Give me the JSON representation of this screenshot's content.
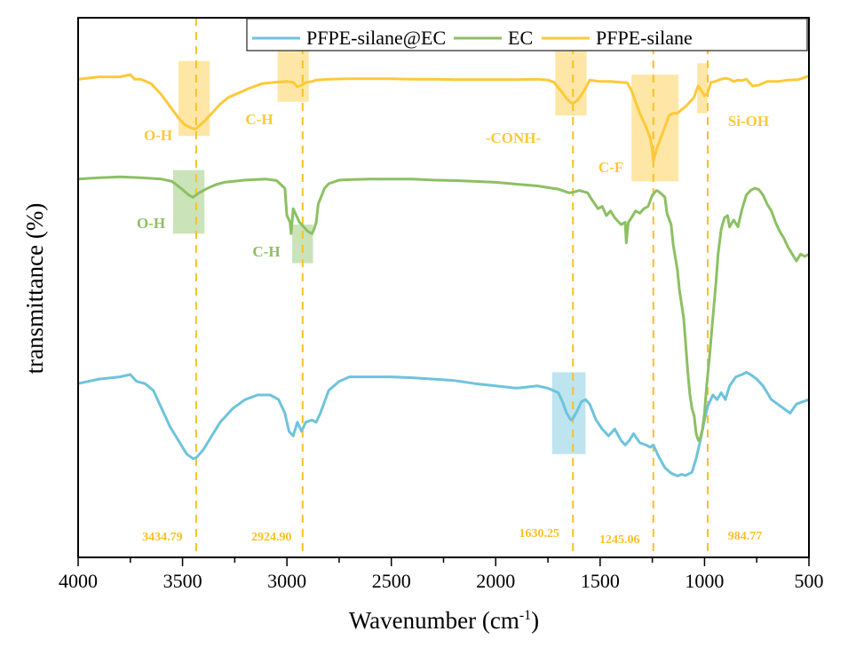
{
  "chart_data": {
    "type": "line",
    "title": "",
    "xlabel": "Wavenumber (cm",
    "xlabel_sup": "-1",
    "xlabel_close": ")",
    "ylabel": "transmittance (%)",
    "xlim": [
      4000,
      500
    ],
    "ylim": [
      0,
      100
    ],
    "x_ticks": [
      4000,
      3500,
      3000,
      2500,
      2000,
      1500,
      1000,
      500
    ],
    "x_tick_labels": [
      "4000",
      "3500",
      "3000",
      "2500",
      "2000",
      "1500",
      "1000",
      "500"
    ],
    "x_minor_ticks": [
      3750,
      3250,
      2750,
      2250,
      1750,
      1250,
      750
    ],
    "grid": false,
    "legend_position": "top-right",
    "series": [
      {
        "name": "PFPE-silane@EC",
        "color": "#6ec3dc",
        "x": [
          4000,
          3900,
          3800,
          3750,
          3720,
          3680,
          3640,
          3600,
          3560,
          3520,
          3480,
          3450,
          3434,
          3400,
          3360,
          3320,
          3260,
          3200,
          3140,
          3080,
          3040,
          3010,
          2990,
          2970,
          2950,
          2930,
          2910,
          2880,
          2860,
          2840,
          2800,
          2750,
          2700,
          2600,
          2500,
          2400,
          2300,
          2200,
          2100,
          2000,
          1900,
          1800,
          1750,
          1700,
          1680,
          1660,
          1640,
          1630,
          1610,
          1590,
          1570,
          1550,
          1520,
          1490,
          1460,
          1430,
          1400,
          1380,
          1360,
          1340,
          1310,
          1280,
          1260,
          1245,
          1220,
          1190,
          1160,
          1130,
          1110,
          1090,
          1060,
          1040,
          1020,
          1000,
          985,
          960,
          940,
          920,
          900,
          880,
          850,
          820,
          800,
          780,
          750,
          720,
          700,
          680,
          650,
          620,
          590,
          560,
          530,
          500
        ],
        "y": [
          35.5,
          36.5,
          37,
          37.5,
          36,
          35.5,
          34,
          30,
          26,
          23,
          20,
          19,
          19.2,
          21,
          24,
          27,
          30,
          32,
          33,
          33,
          32,
          29,
          25,
          24,
          27,
          25,
          27,
          27.5,
          27,
          29,
          34,
          36,
          37,
          37,
          37,
          36.8,
          36.5,
          36.2,
          35.5,
          35,
          34.5,
          35,
          34.5,
          33.5,
          31.5,
          29,
          27.5,
          27.8,
          29.5,
          31.5,
          32,
          31,
          27.5,
          25.5,
          24,
          25.5,
          23,
          22,
          23,
          24.5,
          22.5,
          22,
          21.5,
          22,
          19.5,
          17,
          15.8,
          15.2,
          15.5,
          15.3,
          16,
          19,
          23,
          27.5,
          30.5,
          33,
          32,
          33.5,
          32,
          35,
          37,
          37.5,
          38,
          37.5,
          36.5,
          35,
          33.5,
          32,
          31,
          30,
          29,
          31,
          31.5,
          32
        ]
      },
      {
        "name": "EC",
        "color": "#8cc063",
        "x": [
          4000,
          3900,
          3800,
          3700,
          3600,
          3550,
          3500,
          3470,
          3450,
          3420,
          3380,
          3340,
          3300,
          3200,
          3100,
          3050,
          3010,
          3000,
          2985,
          2980,
          2970,
          2960,
          2950,
          2940,
          2920,
          2900,
          2880,
          2870,
          2860,
          2850,
          2820,
          2800,
          2750,
          2700,
          2600,
          2500,
          2400,
          2300,
          2200,
          2100,
          2000,
          1900,
          1800,
          1700,
          1650,
          1630,
          1600,
          1560,
          1540,
          1510,
          1490,
          1470,
          1450,
          1430,
          1400,
          1380,
          1375,
          1365,
          1350,
          1330,
          1310,
          1290,
          1270,
          1250,
          1230,
          1220,
          1200,
          1190,
          1180,
          1160,
          1150,
          1130,
          1120,
          1100,
          1090,
          1080,
          1070,
          1060,
          1050,
          1040,
          1030,
          1020,
          1010,
          1000,
          990,
          975,
          960,
          945,
          935,
          920,
          905,
          890,
          880,
          860,
          840,
          820,
          800,
          780,
          760,
          740,
          720,
          700,
          680,
          660,
          640,
          620,
          600,
          580,
          560,
          540,
          520,
          500
        ],
        "y": [
          80.5,
          80.8,
          81,
          80.8,
          80.5,
          80,
          78.2,
          77,
          76.5,
          77.5,
          78.5,
          79.3,
          79.8,
          80.3,
          80.5,
          80.2,
          78.5,
          72.5,
          71,
          68.5,
          74,
          73,
          72,
          71,
          70,
          69,
          68.5,
          69.5,
          71,
          75,
          78.5,
          79.5,
          80.3,
          80.4,
          80.5,
          80.5,
          80.5,
          80.3,
          80.2,
          80,
          79.8,
          79.4,
          79,
          78.3,
          77.5,
          77.6,
          78,
          77.5,
          76,
          74,
          74.5,
          72.5,
          73.5,
          72,
          70.5,
          71,
          66.5,
          71,
          72,
          73.5,
          73,
          74,
          74.5,
          77,
          78,
          77.8,
          77,
          76.5,
          73,
          70.5,
          66,
          60.5,
          56,
          50,
          44,
          38,
          33,
          30,
          28.5,
          24.5,
          23,
          23.5,
          25.5,
          29,
          35,
          42,
          50,
          58,
          64,
          69.5,
          72,
          72.5,
          70,
          71.5,
          70,
          74,
          77,
          78,
          78.5,
          78.2,
          77,
          75,
          73.5,
          71,
          69,
          67.5,
          65.5,
          64,
          62.5,
          64,
          63.5,
          64
        ]
      },
      {
        "name": "PFPE-silane",
        "color": "#fcc93a",
        "x": [
          4000,
          3900,
          3800,
          3750,
          3730,
          3700,
          3650,
          3600,
          3560,
          3520,
          3490,
          3460,
          3440,
          3420,
          3390,
          3360,
          3320,
          3280,
          3230,
          3180,
          3120,
          3060,
          3000,
          2970,
          2950,
          2930,
          2910,
          2880,
          2860,
          2800,
          2700,
          2600,
          2500,
          2400,
          2300,
          2200,
          2100,
          2000,
          1900,
          1800,
          1750,
          1720,
          1700,
          1680,
          1660,
          1640,
          1630,
          1610,
          1590,
          1570,
          1550,
          1500,
          1450,
          1400,
          1370,
          1350,
          1330,
          1310,
          1290,
          1280,
          1260,
          1250,
          1245,
          1230,
          1210,
          1190,
          1170,
          1150,
          1130,
          1110,
          1090,
          1070,
          1050,
          1040,
          1030,
          1015,
          1000,
          985,
          970,
          950,
          920,
          900,
          880,
          860,
          840,
          820,
          800,
          770,
          740,
          700,
          650,
          600,
          550,
          500
        ],
        "y": [
          102.5,
          103,
          103,
          103.5,
          102.5,
          102.5,
          101.5,
          99,
          96.5,
          94,
          92.5,
          91.8,
          91.5,
          92.2,
          93.5,
          95,
          97,
          98.5,
          99.5,
          100.5,
          101.5,
          101.8,
          102,
          101.8,
          100.8,
          101.2,
          101.8,
          102,
          102.3,
          102.5,
          102.6,
          102.6,
          102.6,
          102.5,
          102.5,
          102.4,
          102.4,
          102.4,
          102.4,
          102.5,
          102.3,
          101.8,
          100.6,
          99.5,
          98.2,
          97.3,
          97.2,
          97.8,
          99,
          100.5,
          102.3,
          102,
          102,
          101.8,
          101.7,
          100,
          97.5,
          95,
          93,
          92,
          89.5,
          87,
          84.5,
          87,
          89.5,
          92,
          94.5,
          95,
          95,
          95.8,
          96.5,
          97.5,
          98.5,
          100,
          101,
          100,
          98.8,
          99.5,
          101.8,
          102,
          102.5,
          102.7,
          102.5,
          102,
          102.3,
          102.2,
          102.5,
          101,
          101.2,
          102,
          102,
          102.3,
          102.4,
          103.2
        ]
      }
    ],
    "reference_lines": [
      {
        "x": 3434.79,
        "label": "3434.79"
      },
      {
        "x": 2924.9,
        "label": "2924.90"
      },
      {
        "x": 1630.25,
        "label": "1630.25"
      },
      {
        "x": 1245.06,
        "label": "1245.06"
      },
      {
        "x": 984.77,
        "label": "984.77"
      }
    ],
    "reference_line_color": "#fcc026",
    "annotations": [
      {
        "text": "O-H",
        "series": "PFPE-silane",
        "color": "#fcc93a",
        "box": {
          "x0": 3520,
          "x1": 3370,
          "y0": 106.5,
          "y1": 90
        }
      },
      {
        "text": "C-H",
        "series": "PFPE-silane",
        "color": "#fcc93a",
        "box": {
          "x0": 3045,
          "x1": 2895,
          "y0": 114,
          "y1": 97.5
        }
      },
      {
        "text": "-CONH-",
        "series": "PFPE-silane",
        "color": "#fcc93a",
        "box": {
          "x0": 1715,
          "x1": 1565,
          "y0": 112.5,
          "y1": 94.5
        }
      },
      {
        "text": "C-F",
        "series": "PFPE-silane",
        "color": "#fcc93a",
        "box": {
          "x0": 1350,
          "x1": 1125,
          "y0": 103.5,
          "y1": 80
        }
      },
      {
        "text": "Si-OH",
        "series": "PFPE-silane",
        "color": "#fcc93a",
        "box": {
          "x0": 1035,
          "x1": 985,
          "y0": 106,
          "y1": 95
        }
      },
      {
        "text": "O-H",
        "series": "EC",
        "color": "#8cc063",
        "box": {
          "x0": 3545,
          "x1": 3395,
          "y0": 82.5,
          "y1": 68.5
        }
      },
      {
        "text": "C-H",
        "series": "EC",
        "color": "#8cc063",
        "box": {
          "x0": 2975,
          "x1": 2875,
          "y0": 70.5,
          "y1": 62
        }
      },
      {
        "text": "",
        "series": "PFPE-silane@EC",
        "color": "#6ec3dc",
        "box": {
          "x0": 1730,
          "x1": 1570,
          "y0": 38,
          "y1": 20
        }
      }
    ]
  }
}
